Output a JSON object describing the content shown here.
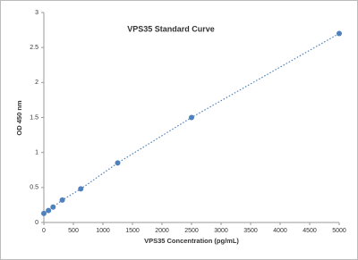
{
  "chart_data": {
    "type": "scatter",
    "title": "VPS35 Standard Curve",
    "x_label": "VPS35 Concentration (pg/mL)",
    "y_label": "OD 450 nm",
    "series": [
      {
        "color": "#4f81bd",
        "line_style": "dotted",
        "x": [
          0,
          78,
          156,
          312,
          625,
          1250,
          2500,
          5000
        ],
        "values": [
          0.13,
          0.17,
          0.22,
          0.32,
          0.48,
          0.85,
          1.5,
          2.7
        ]
      }
    ],
    "xlim": [
      0,
      5000
    ],
    "xticks": [
      0,
      500,
      1000,
      1500,
      2000,
      2500,
      3000,
      3500,
      4000,
      4500,
      5000
    ],
    "ylim": [
      0,
      3
    ],
    "yticks": [
      0,
      0.5,
      1,
      1.5,
      2,
      2.5,
      3
    ],
    "grid": false
  }
}
